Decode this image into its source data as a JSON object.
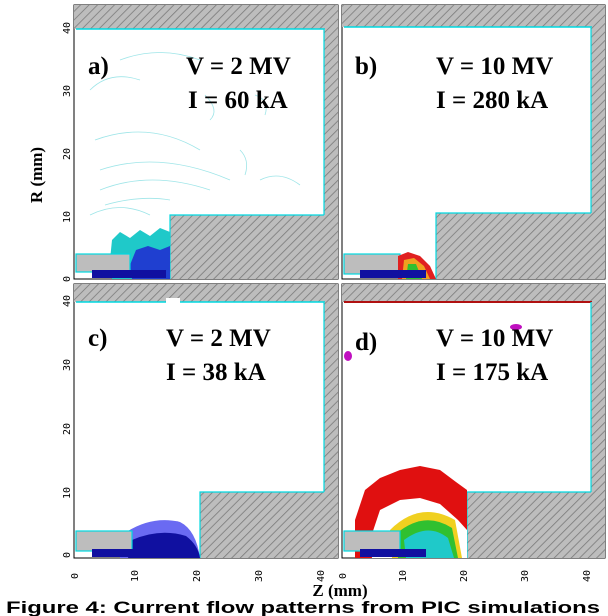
{
  "figure": {
    "y_axis_label": "R (mm)",
    "x_axis_label": "Z (mm)",
    "caption_text": "Figure 4: Current flow patterns from PIC simulations"
  },
  "x_ticks": [
    "0",
    "10",
    "20",
    "30",
    "40"
  ],
  "y_ticks": [
    "0",
    "10",
    "20",
    "30",
    "40"
  ],
  "panels": [
    {
      "id": "a)",
      "voltage": "V = 2 MV",
      "current": "I = 60 kA"
    },
    {
      "id": "b)",
      "voltage": "V = 10 MV",
      "current": "I = 280 kA"
    },
    {
      "id": "c)",
      "voltage": "V = 2 MV",
      "current": "I = 38 kA"
    },
    {
      "id": "d)",
      "voltage": "V = 10 MV",
      "current": "I = 175 kA"
    }
  ],
  "colors": {
    "hatch": "#b4b4b4",
    "boundary": "#00d8e0"
  }
}
